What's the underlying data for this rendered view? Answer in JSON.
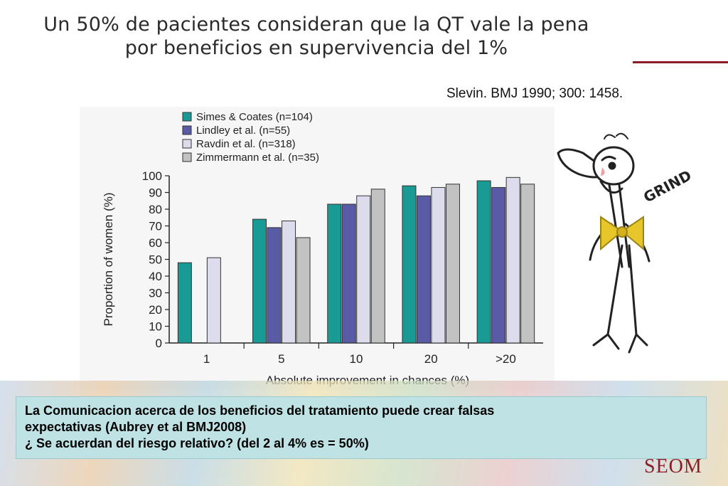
{
  "slide": {
    "title_lines": [
      "Un 50% de pacientes consideran que la QT vale la pena",
      "por beneficios en supervivencia del 1%"
    ],
    "citation": "Slevin. BMJ 1990; 300: 1458.",
    "callout_lines": [
      "La Comunicacion acerca de los beneficios del tratamiento puede crear falsas",
      "expectativas (Aubrey et al BMJ2008)",
      "¿ Se acuerdan del riesgo relativo? (del 2 al 4% es = 50%)"
    ],
    "logo_text": "SEOM",
    "cartoon_text": "GRIND",
    "colors": {
      "accent_rule": "#8a1d28",
      "callout_bg": "#bfe2e4"
    }
  },
  "chart_data": {
    "type": "bar",
    "title": "",
    "xlabel": "Absolute improvement in chances (%)",
    "ylabel": "Proportion of women (%)",
    "categories": [
      "1",
      "5",
      "10",
      "20",
      ">20"
    ],
    "ylim": [
      0,
      100
    ],
    "yticks": [
      0,
      10,
      20,
      30,
      40,
      50,
      60,
      70,
      80,
      90,
      100
    ],
    "legend_position": "top-left",
    "series": [
      {
        "name": "Simes & Coates (n=104)",
        "color": "#1a9a94",
        "values": [
          48,
          74,
          83,
          94,
          97
        ]
      },
      {
        "name": "Lindley et al. (n=55)",
        "color": "#5a5ba6",
        "values": [
          null,
          69,
          83,
          88,
          93
        ]
      },
      {
        "name": "Ravdin et al. (n=318)",
        "color": "#dcdcec",
        "values": [
          51,
          73,
          88,
          93,
          99
        ]
      },
      {
        "name": "Zimmermann et al. (n=35)",
        "color": "#c2c2c2",
        "values": [
          null,
          63,
          92,
          95,
          95
        ]
      }
    ]
  }
}
